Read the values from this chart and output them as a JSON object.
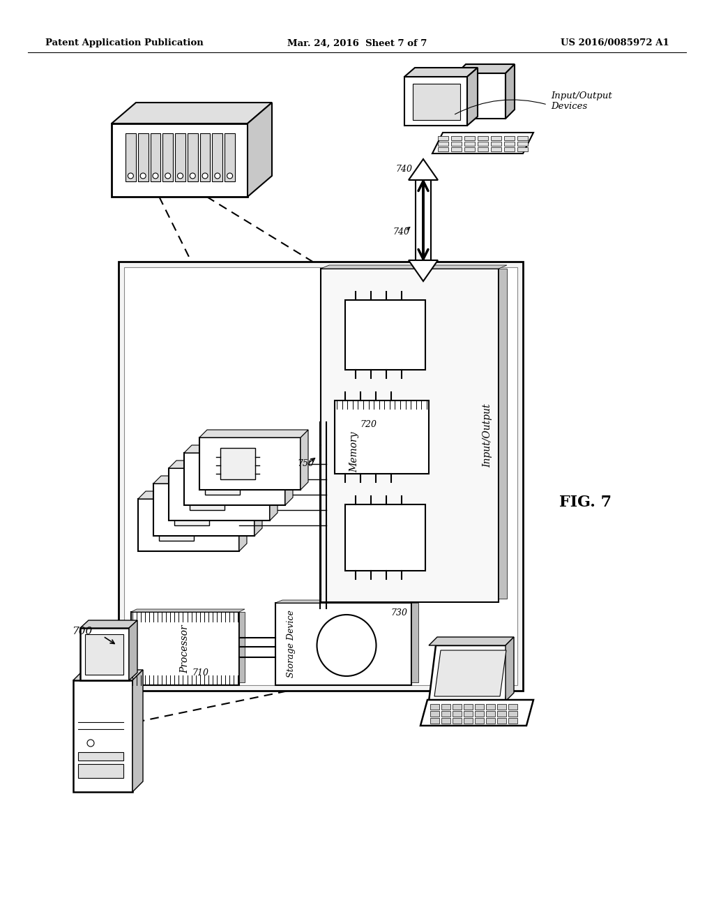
{
  "title_left": "Patent Application Publication",
  "title_mid": "Mar. 24, 2016  Sheet 7 of 7",
  "title_right": "US 2016/0085972 A1",
  "fig_label": "FIG. 7",
  "label_700": "700",
  "label_710": "710",
  "label_720": "720",
  "label_730": "730",
  "label_740": "740",
  "label_750": "750",
  "text_processor": "Processor",
  "text_memory": "Memory",
  "text_storage": "Storage Device",
  "text_io_label": "Input/Output",
  "text_io_devices": "Input/Output\nDevices",
  "bg_color": "#ffffff",
  "line_color": "#000000"
}
